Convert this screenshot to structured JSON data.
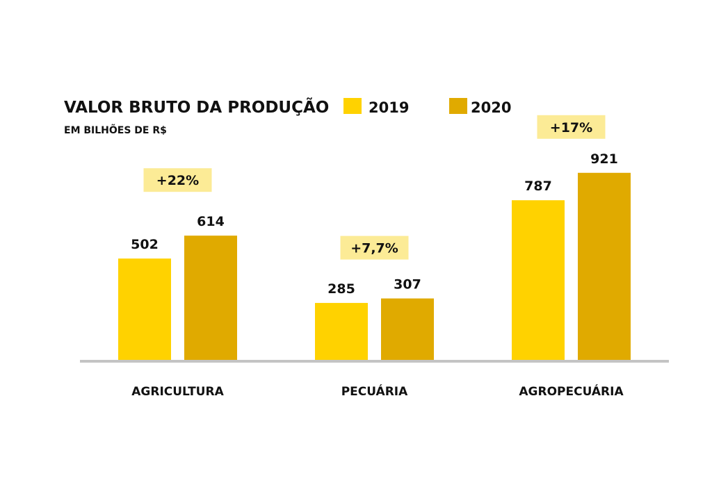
{
  "chart_data": {
    "type": "bar",
    "title": "VALOR BRUTO DA PRODUÇÃO",
    "subtitle": "EM BILHÕES DE R$",
    "xlabel": "",
    "ylabel": "",
    "ylim": [
      0,
      1000
    ],
    "grid": false,
    "legend_position": "top",
    "categories": [
      "AGRICULTURA",
      "PECUÁRIA",
      "AGROPECUÁRIA"
    ],
    "series": [
      {
        "name": "2019",
        "color": "#FFD200",
        "values": [
          502,
          285,
          787
        ]
      },
      {
        "name": "2020",
        "color": "#E0AA00",
        "values": [
          614,
          307,
          921
        ]
      }
    ],
    "annotations": [
      "+22%",
      "+7,7%",
      "+17%"
    ],
    "annotation_color": "#FCEB96"
  }
}
